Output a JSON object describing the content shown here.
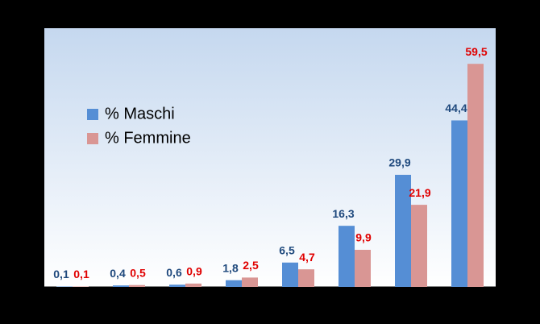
{
  "chart_data": {
    "type": "bar",
    "categories": [
      null,
      null,
      null,
      null,
      null,
      null,
      null,
      null
    ],
    "series": [
      {
        "name": "% Maschi",
        "color": "#558ed5",
        "label_color": "#1f497d",
        "values": [
          0.1,
          0.4,
          0.6,
          1.8,
          6.5,
          16.3,
          29.9,
          44.4
        ],
        "value_labels": [
          "0,1",
          "0,4",
          "0,6",
          "1,8",
          "6,5",
          "16,3",
          "29,9",
          "44,4"
        ]
      },
      {
        "name": "% Femmine",
        "color": "#d99694",
        "label_color": "#e00000",
        "values": [
          0.1,
          0.5,
          0.9,
          2.5,
          4.7,
          9.9,
          21.9,
          59.5
        ],
        "value_labels": [
          "0,1",
          "0,5",
          "0,9",
          "2,5",
          "4,7",
          "9,9",
          "21,9",
          "59,5"
        ]
      }
    ],
    "ylim": [
      0,
      69
    ],
    "legend": "upper left"
  }
}
